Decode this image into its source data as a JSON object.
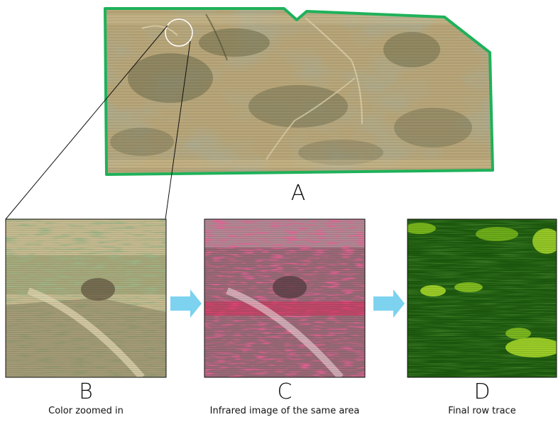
{
  "panels": {
    "a": {
      "letter": "A"
    },
    "b": {
      "letter": "B",
      "caption": "Color zoomed in"
    },
    "c": {
      "letter": "C",
      "caption": "Infrared image of the same area"
    },
    "d": {
      "letter": "D",
      "caption": "Final row trace"
    }
  },
  "colors": {
    "field_border": "#1fb15a",
    "arrow": "#7cd2ef",
    "field_tan": "#b9a77a",
    "field_dark": "#6f6e4e",
    "infrared_base": "#9a6a78",
    "infrared_red": "#e0275a",
    "trace_dark": "#1d5a0e",
    "trace_light": "#a8d92a"
  }
}
